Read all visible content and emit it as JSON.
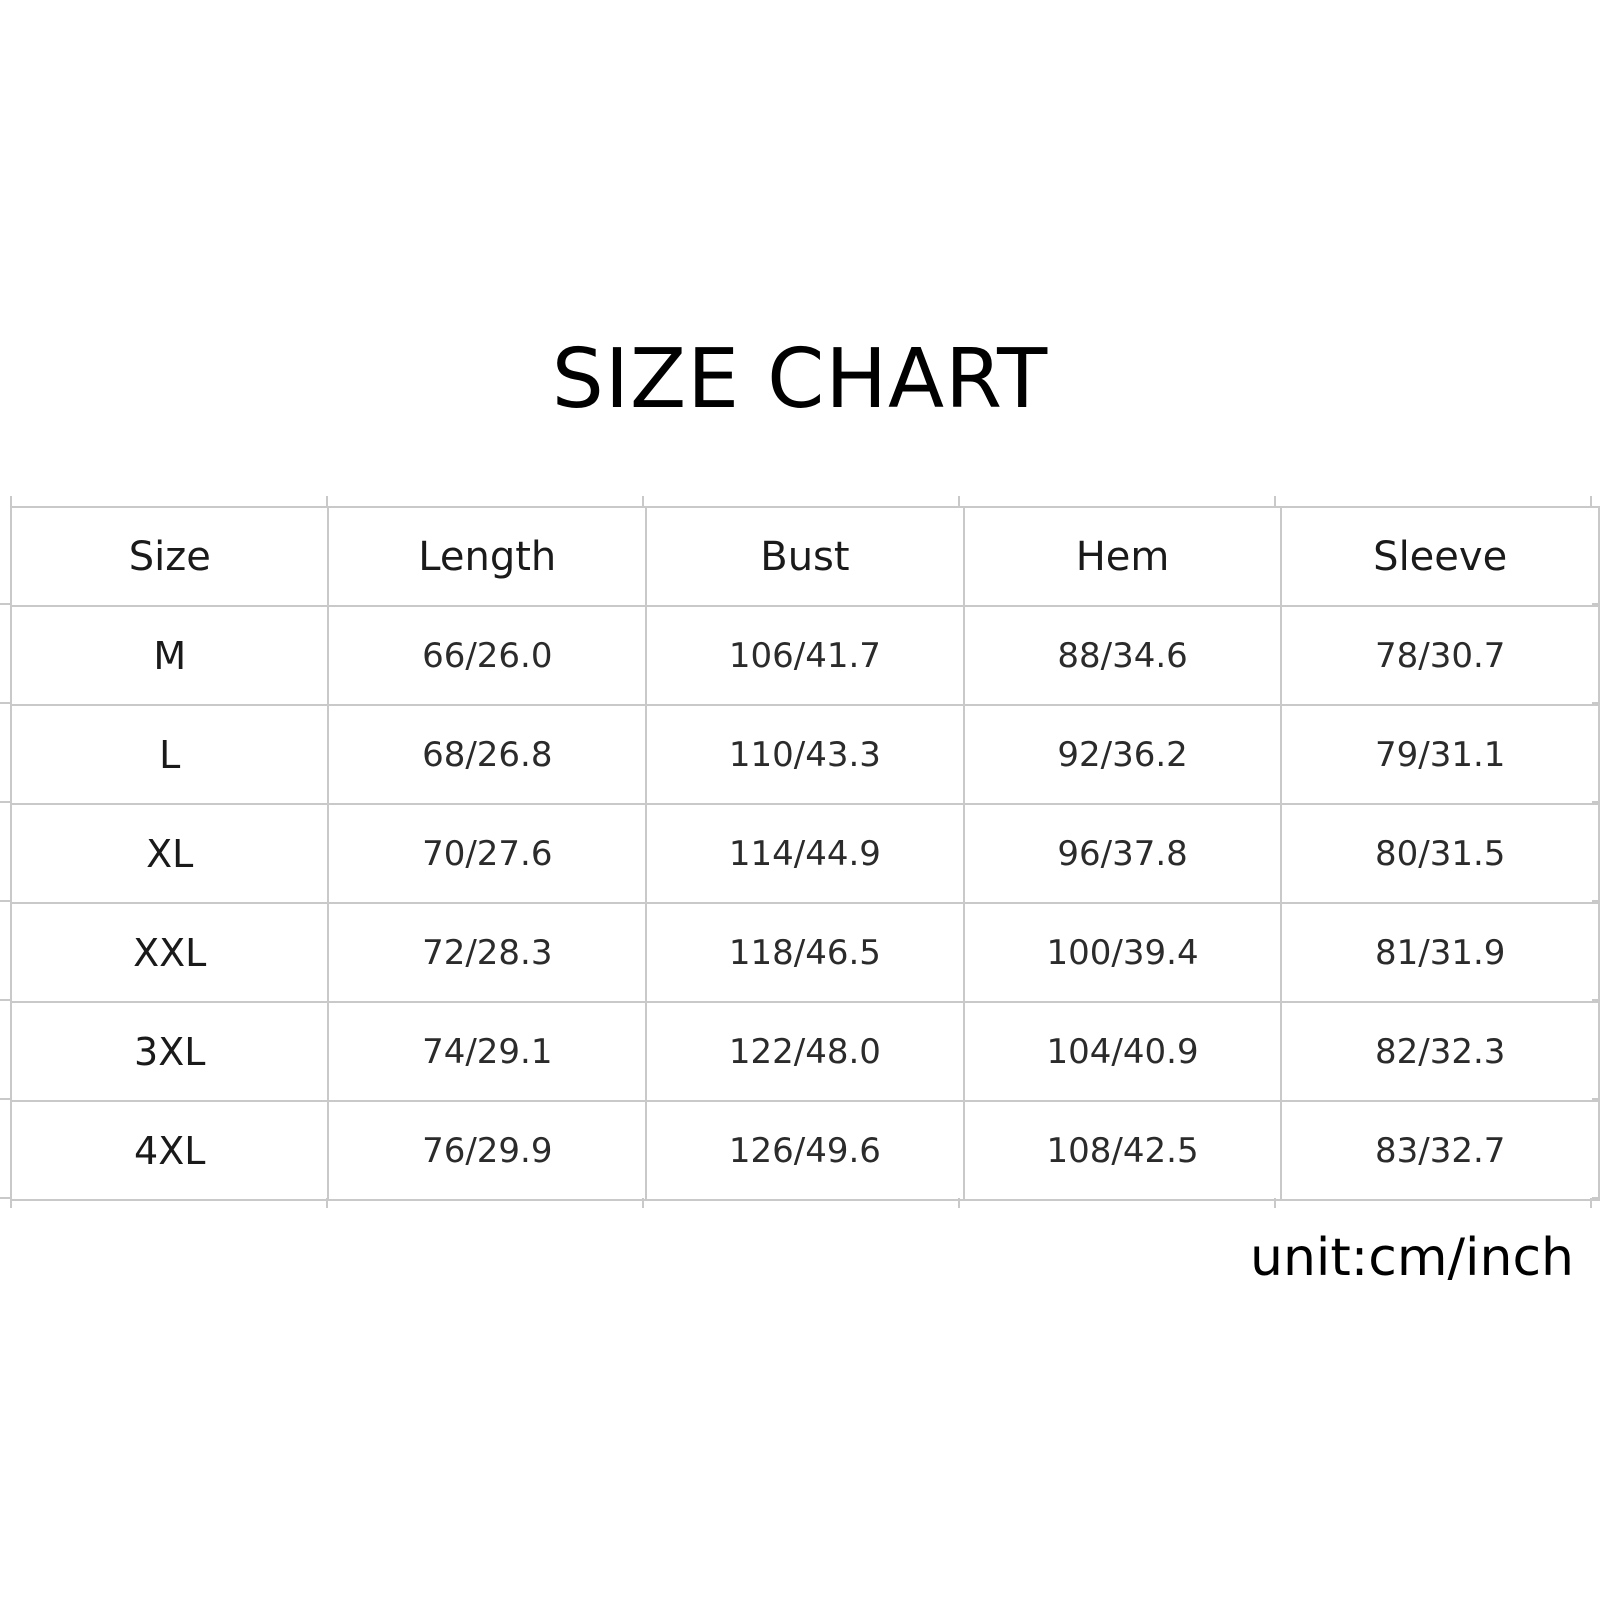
{
  "title": "SIZE CHART",
  "table": {
    "headers": [
      "Size",
      "Length",
      "Bust",
      "Hem",
      "Sleeve"
    ],
    "rows": [
      [
        "M",
        "66/26.0",
        "106/41.7",
        "88/34.6",
        "78/30.7"
      ],
      [
        "L",
        "68/26.8",
        "110/43.3",
        "92/36.2",
        "79/31.1"
      ],
      [
        "XL",
        "70/27.6",
        "114/44.9",
        "96/37.8",
        "80/31.5"
      ],
      [
        "XXL",
        "72/28.3",
        "118/46.5",
        "100/39.4",
        "81/31.9"
      ],
      [
        "3XL",
        "74/29.1",
        "122/48.0",
        "104/40.9",
        "82/32.3"
      ],
      [
        "4XL",
        "76/29.9",
        "126/49.6",
        "108/42.5",
        "83/32.7"
      ]
    ]
  },
  "unit_note": "unit:cm/inch",
  "colors": {
    "grid_line": "#c9c9c9",
    "text": "#1a1a1a",
    "background": "#ffffff"
  }
}
